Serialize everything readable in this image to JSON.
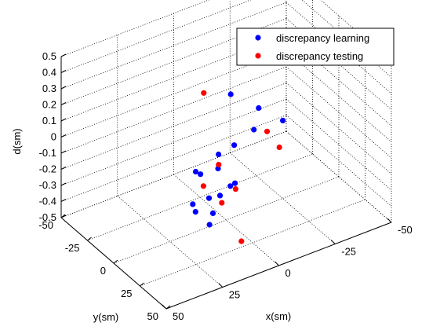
{
  "chart_data": {
    "type": "scatter",
    "title": "",
    "xlabel": "x(sm)",
    "ylabel": "y(sm)",
    "zlabel": "d(sm)",
    "xlim": [
      -50,
      50
    ],
    "ylim": [
      -50,
      50
    ],
    "zlim": [
      -0.5,
      0.5
    ],
    "x_ticks": [
      "50",
      "25",
      "0",
      "-25",
      "-50"
    ],
    "y_ticks": [
      "-50",
      "-25",
      "0",
      "25",
      "50"
    ],
    "z_ticks": [
      "0.5",
      "0.4",
      "0.3",
      "0.2",
      "0.1",
      "0",
      "-0.1",
      "-0.2",
      "-0.3",
      "-0.4",
      "-0.5"
    ],
    "grid": true,
    "legend_position": "top-right",
    "series": [
      {
        "name": "discrepancy learning",
        "color": "#0000ff",
        "points": [
          {
            "x": 28,
            "y": 44,
            "z": -0.13
          },
          {
            "x": 30,
            "y": 35,
            "z": -0.09
          },
          {
            "x": 27,
            "y": 26,
            "z": -0.11
          },
          {
            "x": 22,
            "y": 18,
            "z": 0.02
          },
          {
            "x": 17,
            "y": 20,
            "z": -0.16
          },
          {
            "x": 18,
            "y": 14,
            "z": -0.04
          },
          {
            "x": 10,
            "y": 14,
            "z": 0.04
          },
          {
            "x": 3,
            "y": 14,
            "z": 0.06
          },
          {
            "x": -2,
            "y": 0,
            "z": 0.27
          },
          {
            "x": 6,
            "y": 5,
            "z": -0.12
          },
          {
            "x": 12,
            "y": 13,
            "z": -0.32
          },
          {
            "x": 7,
            "y": 9,
            "z": -0.26
          },
          {
            "x": 1,
            "y": 6,
            "z": -0.25
          },
          {
            "x": -2,
            "y": 4,
            "z": -0.26
          },
          {
            "x": -16,
            "y": -8,
            "z": -0.07
          },
          {
            "x": -20,
            "y": -12,
            "z": 0.02
          },
          {
            "x": -27,
            "y": -4,
            "z": -0.05
          }
        ]
      },
      {
        "name": "discrepancy testing",
        "color": "#ff0000",
        "points": [
          {
            "x": 3,
            "y": -15,
            "z": 0.22
          },
          {
            "x": 19,
            "y": 19,
            "z": -0.08
          },
          {
            "x": 9,
            "y": 12,
            "z": -0.04
          },
          {
            "x": 9,
            "y": 15,
            "z": -0.26
          },
          {
            "x": 1,
            "y": 11,
            "z": -0.24
          },
          {
            "x": 4,
            "y": 23,
            "z": -0.48
          },
          {
            "x": -20,
            "y": -4,
            "z": -0.08
          },
          {
            "x": -25,
            "y": -3,
            "z": -0.2
          }
        ]
      }
    ]
  }
}
